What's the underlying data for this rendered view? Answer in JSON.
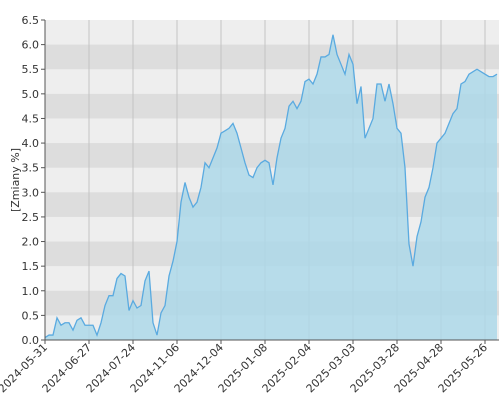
{
  "chart_data": {
    "type": "area",
    "y_label": "[Zmiany %]",
    "values": [
      0.05,
      0.1,
      0.1,
      0.45,
      0.3,
      0.35,
      0.35,
      0.2,
      0.4,
      0.45,
      0.3,
      0.3,
      0.3,
      0.1,
      0.35,
      0.7,
      0.9,
      0.9,
      1.25,
      1.35,
      1.3,
      0.6,
      0.8,
      0.65,
      0.7,
      1.2,
      1.4,
      0.35,
      0.1,
      0.55,
      0.7,
      1.3,
      1.6,
      2.0,
      2.8,
      3.2,
      2.9,
      2.7,
      2.8,
      3.1,
      3.6,
      3.5,
      3.7,
      3.9,
      4.2,
      4.25,
      4.3,
      4.4,
      4.2,
      3.9,
      3.6,
      3.35,
      3.3,
      3.5,
      3.6,
      3.65,
      3.6,
      3.15,
      3.7,
      4.1,
      4.3,
      4.75,
      4.85,
      4.7,
      4.85,
      5.25,
      5.3,
      5.2,
      5.4,
      5.75,
      5.75,
      5.8,
      6.2,
      5.8,
      5.6,
      5.4,
      5.8,
      5.6,
      4.8,
      5.15,
      4.1,
      4.3,
      4.5,
      5.2,
      5.2,
      4.85,
      5.2,
      4.8,
      4.3,
      4.2,
      3.5,
      1.95,
      1.5,
      2.1,
      2.4,
      2.9,
      3.1,
      3.5,
      4.0,
      4.1,
      4.2,
      4.4,
      4.6,
      4.7,
      5.2,
      5.25,
      5.4,
      5.45,
      5.5,
      5.45,
      5.4,
      5.35,
      5.35,
      5.4
    ],
    "color": "#5aaae0",
    "fill": "#add8e9",
    "xlim": [
      0,
      113.5
    ],
    "xticks": [
      {
        "value": 0,
        "label": "2024-05-31"
      },
      {
        "value": 11,
        "label": "2024-06-27"
      },
      {
        "value": 22,
        "label": "2024-07-24"
      },
      {
        "value": 33,
        "label": "2024-11-06"
      },
      {
        "value": 44,
        "label": "2024-12-04"
      },
      {
        "value": 55,
        "label": "2025-01-08"
      },
      {
        "value": 66,
        "label": "2025-02-04"
      },
      {
        "value": 77,
        "label": "2025-03-03"
      },
      {
        "value": 88,
        "label": "2025-03-28"
      },
      {
        "value": 99,
        "label": "2025-04-28"
      },
      {
        "value": 110,
        "label": "2025-05-26"
      }
    ],
    "ylim": [
      0,
      6.5
    ],
    "yticks": [
      {
        "value": 0,
        "label": "0.0"
      },
      {
        "value": 0.5,
        "label": "0.5"
      },
      {
        "value": 1,
        "label": "1.0"
      },
      {
        "value": 1.5,
        "label": "1.5"
      },
      {
        "value": 2,
        "label": "2.0"
      },
      {
        "value": 2.5,
        "label": "2.5"
      },
      {
        "value": 3,
        "label": "3.0"
      },
      {
        "value": 3.5,
        "label": "3.5"
      },
      {
        "value": 4,
        "label": "4.0"
      },
      {
        "value": 4.5,
        "label": "4.5"
      },
      {
        "value": 5,
        "label": "5.0"
      },
      {
        "value": 5.5,
        "label": "5.5"
      },
      {
        "value": 6,
        "label": "6.0"
      },
      {
        "value": 6.5,
        "label": "6.5"
      }
    ],
    "grid": true
  }
}
